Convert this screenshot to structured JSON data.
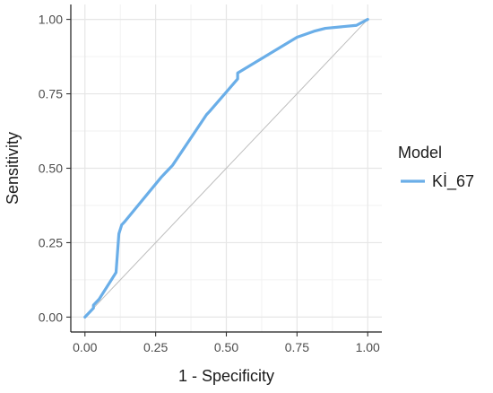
{
  "chart_data": {
    "type": "line",
    "xlabel": "1 - Specificity",
    "ylabel": "Sensitivity",
    "xlim": [
      -0.05,
      1.05
    ],
    "ylim": [
      -0.05,
      1.05
    ],
    "grid": true,
    "x_ticks": [
      "0.00",
      "0.25",
      "0.50",
      "0.75",
      "1.00"
    ],
    "y_ticks": [
      "0.00",
      "0.25",
      "0.50",
      "0.75",
      "1.00"
    ],
    "x_tick_values": [
      0,
      0.25,
      0.5,
      0.75,
      1
    ],
    "y_tick_values": [
      0,
      0.25,
      0.5,
      0.75,
      1
    ],
    "reference_line": {
      "x": [
        0,
        1
      ],
      "y": [
        0,
        1
      ],
      "color": "#bdbdbd"
    },
    "legend": {
      "title": "Model",
      "placement": "right",
      "entries": [
        {
          "label": "Kİ_67",
          "color": "#6aaee8"
        }
      ]
    },
    "series": [
      {
        "name": "Kİ_67",
        "color": "#6aaee8",
        "x": [
          0,
          0.02,
          0.03,
          0.03,
          0.05,
          0.11,
          0.12,
          0.13,
          0.14,
          0.27,
          0.28,
          0.3,
          0.31,
          0.43,
          0.44,
          0.54,
          0.54,
          0.75,
          0.81,
          0.85,
          0.96,
          1
        ],
        "y": [
          0,
          0.02,
          0.03,
          0.04,
          0.06,
          0.15,
          0.28,
          0.31,
          0.32,
          0.47,
          0.48,
          0.5,
          0.51,
          0.68,
          0.69,
          0.8,
          0.82,
          0.94,
          0.96,
          0.97,
          0.98,
          1
        ]
      }
    ]
  }
}
